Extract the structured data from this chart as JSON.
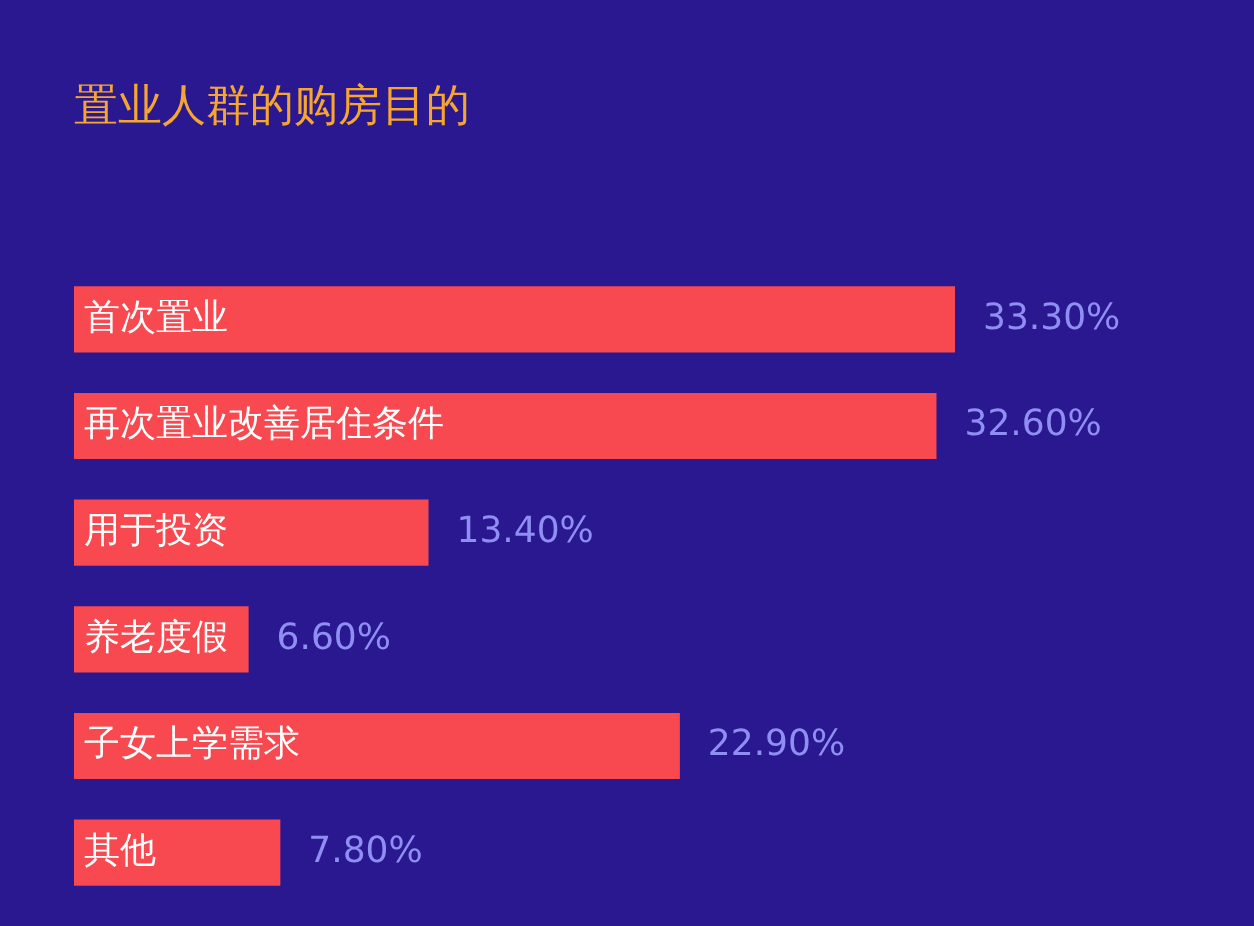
{
  "chart_data": {
    "type": "bar",
    "orientation": "horizontal",
    "title": "置业人群的购房目的",
    "categories": [
      "首次置业",
      "再次置业改善居住条件",
      "用于投资",
      "养老度假",
      "子女上学需求",
      "其他"
    ],
    "values": [
      33.3,
      32.6,
      13.4,
      6.6,
      22.9,
      7.8
    ],
    "value_labels": [
      "33.30%",
      "32.60%",
      "13.40%",
      "6.60%",
      "22.90%",
      "7.80%"
    ],
    "color": "#f7494f"
  }
}
